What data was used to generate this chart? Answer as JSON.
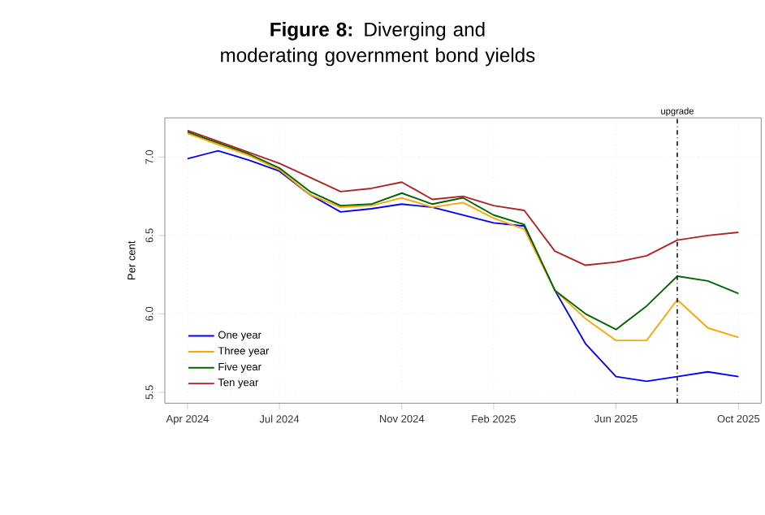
{
  "chart_data": {
    "type": "line",
    "title": "**Figure 8:** Diverging and moderating government bond yields",
    "ylabel": "Per cent",
    "x": [
      "2024-04",
      "2024-05",
      "2024-06",
      "2024-07",
      "2024-08",
      "2024-09",
      "2024-10",
      "2024-11",
      "2024-12",
      "2025-01",
      "2025-02",
      "2025-03",
      "2025-04",
      "2025-05",
      "2025-06",
      "2025-07",
      "2025-08",
      "2025-09",
      "2025-10"
    ],
    "series": [
      {
        "name": "One year",
        "color": "#0000ff",
        "values": [
          6.99,
          7.04,
          6.98,
          6.91,
          6.76,
          6.65,
          6.67,
          6.7,
          6.68,
          6.63,
          6.58,
          6.56,
          6.15,
          5.81,
          5.6,
          5.57,
          5.6,
          5.63,
          5.6
        ]
      },
      {
        "name": "Three year",
        "color": "#ffa500",
        "values": [
          7.15,
          7.08,
          7.01,
          6.92,
          6.76,
          6.68,
          6.69,
          6.74,
          6.68,
          6.71,
          6.61,
          6.54,
          6.15,
          5.97,
          5.83,
          5.83,
          6.09,
          5.91,
          5.85
        ]
      },
      {
        "name": "Five year",
        "color": "#006400",
        "values": [
          7.16,
          7.09,
          7.02,
          6.93,
          6.78,
          6.69,
          6.7,
          6.77,
          6.7,
          6.74,
          6.63,
          6.57,
          6.15,
          6.0,
          5.9,
          6.05,
          6.24,
          6.21,
          6.13
        ]
      },
      {
        "name": "Ten year",
        "color": "#b22222",
        "values": [
          7.17,
          7.1,
          7.03,
          6.96,
          6.87,
          6.78,
          6.8,
          6.84,
          6.73,
          6.75,
          6.69,
          6.66,
          6.4,
          6.31,
          6.33,
          6.37,
          6.47,
          6.5,
          6.52
        ]
      }
    ],
    "xlim": [
      "2024-03-09",
      "2025-10-24"
    ],
    "xticks": [
      {
        "value": "2024-04",
        "label": "Apr 2024"
      },
      {
        "value": "2024-07",
        "label": "Jul 2024"
      },
      {
        "value": "2024-11",
        "label": "Nov 2024"
      },
      {
        "value": "2025-02",
        "label": "Feb 2025"
      },
      {
        "value": "2025-06",
        "label": "Jun 2025"
      },
      {
        "value": "2025-10",
        "label": "Oct 2025"
      }
    ],
    "ylim": [
      5.43,
      7.25
    ],
    "yticks": [
      {
        "value": 5.5,
        "label": "5.5"
      },
      {
        "value": 6.0,
        "label": "6.0"
      },
      {
        "value": 6.5,
        "label": "6.5"
      },
      {
        "value": 7.0,
        "label": "7.0"
      }
    ],
    "ref_lines": [
      {
        "axis": "x",
        "value": "2025-08",
        "label": "upgrade",
        "color": "#333333",
        "line_style": "dashed"
      }
    ],
    "grid": true,
    "legend": "bottom left",
    "marker": "none",
    "line_style": "solid"
  }
}
